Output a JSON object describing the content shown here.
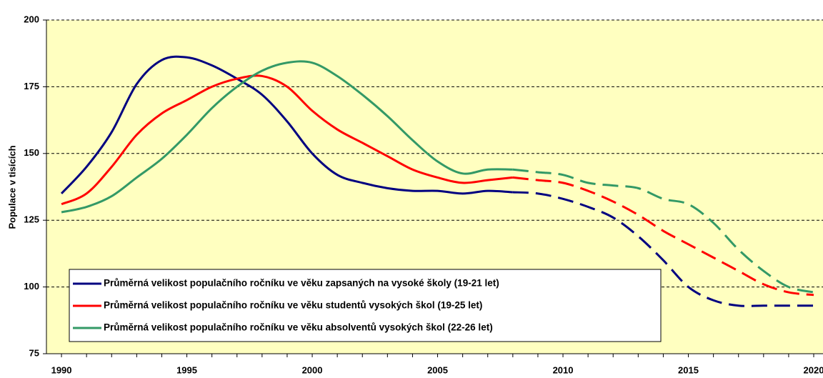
{
  "chart_data": {
    "type": "line",
    "ylabel": "Populace v tisících",
    "x": [
      1990,
      1991,
      1992,
      1993,
      1994,
      1995,
      1996,
      1997,
      1998,
      1999,
      2000,
      2001,
      2002,
      2003,
      2004,
      2005,
      2006,
      2007,
      2008,
      2009,
      2010,
      2011,
      2012,
      2013,
      2014,
      2015,
      2016,
      2017,
      2018,
      2019,
      2020
    ],
    "dashed_from": 2008,
    "series": [
      {
        "name": "Průměrná velikost populačního ročníku ve věku zapsaných na vysoké školy (19-21 let)",
        "color": "#000080",
        "values": [
          135,
          145,
          158,
          176,
          185,
          186,
          183,
          178,
          172,
          162,
          150,
          142,
          139,
          137,
          136,
          136,
          135,
          136,
          135.5,
          135,
          133,
          130,
          126,
          119,
          110,
          100,
          95,
          93,
          93,
          93,
          93
        ]
      },
      {
        "name": "Průměrná velikost populačního ročníku ve věku studentů vysokých škol (19-25 let)",
        "color": "#ff0000",
        "values": [
          131,
          135,
          145,
          157,
          165,
          170,
          175,
          178,
          179,
          175,
          166,
          159,
          154,
          149,
          144,
          141,
          139,
          140,
          141,
          140,
          139,
          136,
          132,
          127,
          121,
          116,
          111,
          106,
          101,
          98,
          97
        ]
      },
      {
        "name": "Průměrná velikost populačního ročníku ve věku absolventů vysokých škol (22-26 let)",
        "color": "#339966",
        "values": [
          128,
          130,
          134,
          141,
          148,
          157,
          167,
          175,
          181,
          184,
          184,
          179,
          172,
          164,
          155,
          147,
          142.5,
          144,
          144,
          143,
          142,
          139,
          138,
          137,
          133,
          131,
          124,
          114,
          106,
          100,
          98
        ]
      }
    ],
    "xlim": [
      1989.4,
      2020.37
    ],
    "ylim": [
      75,
      200
    ],
    "xticks": [
      1990,
      1995,
      2000,
      2005,
      2010,
      2015,
      2020
    ],
    "yticks": [
      75,
      100,
      125,
      150,
      175,
      200
    ],
    "grid": true,
    "legend": "lower left",
    "background": "#ffffc0"
  }
}
